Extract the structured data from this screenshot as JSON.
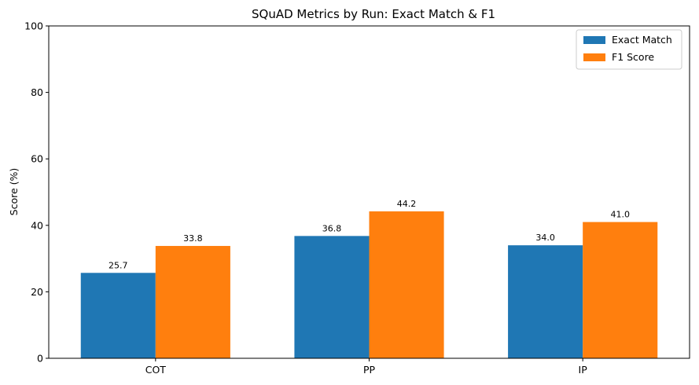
{
  "chart_data": {
    "type": "bar",
    "title": "SQuAD Metrics by Run: Exact Match & F1",
    "xlabel": "",
    "ylabel": "Score (%)",
    "ylim": [
      0,
      100
    ],
    "yticks": [
      0,
      20,
      40,
      60,
      80,
      100
    ],
    "categories": [
      "COT",
      "PP",
      "IP"
    ],
    "series": [
      {
        "name": "Exact Match",
        "color": "#1f77b4",
        "values": [
          25.7,
          36.8,
          34.0
        ],
        "labels": [
          "25.7",
          "36.8",
          "34.0"
        ]
      },
      {
        "name": "F1 Score",
        "color": "#ff7f0e",
        "values": [
          33.8,
          44.2,
          41.0
        ],
        "labels": [
          "33.8",
          "44.2",
          "41.0"
        ]
      }
    ],
    "grid": false,
    "legend_position": "top-right"
  }
}
